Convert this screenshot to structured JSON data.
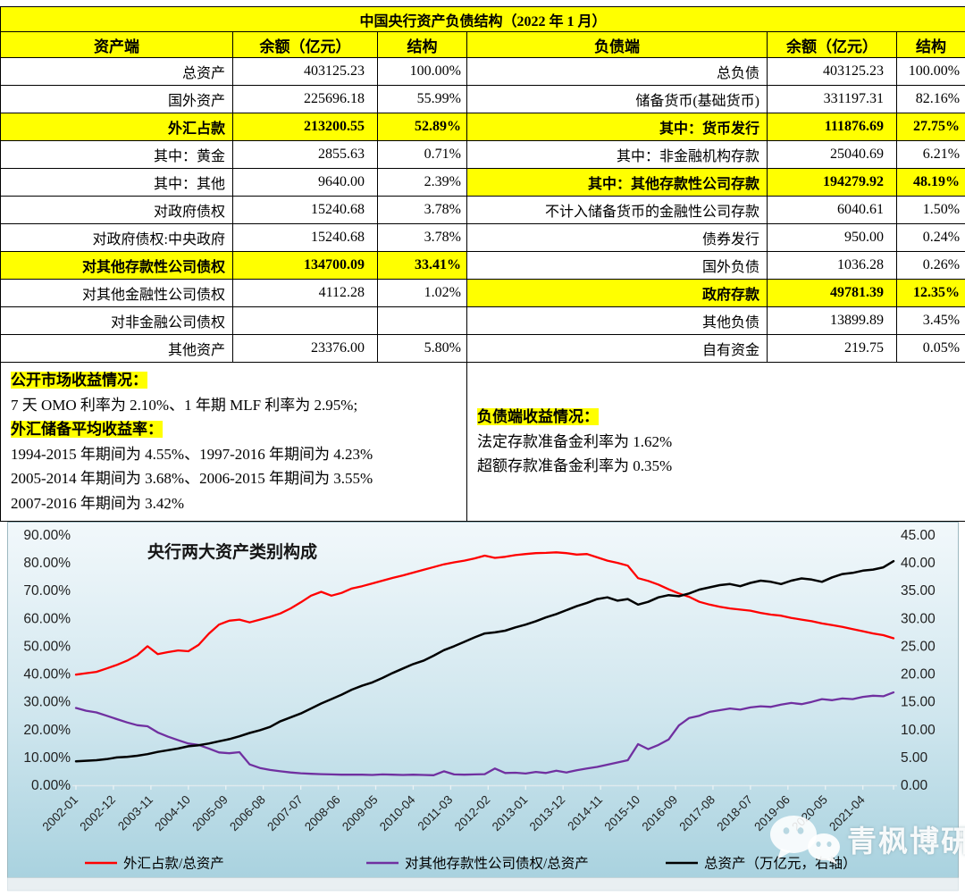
{
  "table": {
    "title": "中国央行资产负债结构（2022 年 1 月）",
    "headers": [
      "资产端",
      "余额（亿元）",
      "结构",
      "负债端",
      "余额（亿元）",
      "结构"
    ],
    "rows": [
      {
        "asset": {
          "label": "总资产",
          "value": "403125.23",
          "pct": "100.00%",
          "highlight": false
        },
        "liability": {
          "label": "总负债",
          "value": "403125.23",
          "pct": "100.00%",
          "highlight": false
        }
      },
      {
        "asset": {
          "label": "国外资产",
          "value": "225696.18",
          "pct": "55.99%",
          "highlight": false
        },
        "liability": {
          "label": "储备货币(基础货币)",
          "value": "331197.31",
          "pct": "82.16%",
          "highlight": false
        }
      },
      {
        "asset": {
          "label": "外汇占款",
          "value": "213200.55",
          "pct": "52.89%",
          "highlight": true
        },
        "liability": {
          "label": "其中：货币发行",
          "value": "111876.69",
          "pct": "27.75%",
          "highlight": true
        }
      },
      {
        "asset": {
          "label": "其中：黄金",
          "value": "2855.63",
          "pct": "0.71%",
          "highlight": false
        },
        "liability": {
          "label": "其中：非金融机构存款",
          "value": "25040.69",
          "pct": "6.21%",
          "highlight": false
        }
      },
      {
        "asset": {
          "label": "其中：其他",
          "value": "9640.00",
          "pct": "2.39%",
          "highlight": false
        },
        "liability": {
          "label": "其中：其他存款性公司存款",
          "value": "194279.92",
          "pct": "48.19%",
          "highlight": true
        }
      },
      {
        "asset": {
          "label": "对政府债权",
          "value": "15240.68",
          "pct": "3.78%",
          "highlight": false
        },
        "liability": {
          "label": "不计入储备货币的金融性公司存款",
          "value": "6040.61",
          "pct": "1.50%",
          "highlight": false
        }
      },
      {
        "asset": {
          "label": "对政府债权:中央政府",
          "value": "15240.68",
          "pct": "3.78%",
          "highlight": false
        },
        "liability": {
          "label": "债券发行",
          "value": "950.00",
          "pct": "0.24%",
          "highlight": false
        }
      },
      {
        "asset": {
          "label": "对其他存款性公司债权",
          "value": "134700.09",
          "pct": "33.41%",
          "highlight": true
        },
        "liability": {
          "label": "国外负债",
          "value": "1036.28",
          "pct": "0.26%",
          "highlight": false
        }
      },
      {
        "asset": {
          "label": "对其他金融性公司债权",
          "value": "4112.28",
          "pct": "1.02%",
          "highlight": false
        },
        "liability": {
          "label": "政府存款",
          "value": "49781.39",
          "pct": "12.35%",
          "highlight": true
        }
      },
      {
        "asset": {
          "label": "对非金融公司债权",
          "value": "",
          "pct": "",
          "highlight": false
        },
        "liability": {
          "label": "其他负债",
          "value": "13899.89",
          "pct": "3.45%",
          "highlight": false
        }
      },
      {
        "asset": {
          "label": "其他资产",
          "value": "23376.00",
          "pct": "5.80%",
          "highlight": false
        },
        "liability": {
          "label": "自有资金",
          "value": "219.75",
          "pct": "0.05%",
          "highlight": false
        }
      }
    ]
  },
  "notes": {
    "left": {
      "heading1": "公开市场收益情况：",
      "line1": "7 天 OMO 利率为 2.10%、1 年期 MLF 利率为 2.95%;",
      "heading2": "外汇储备平均收益率：",
      "line2": "1994-2015 年期间为 4.55%、1997-2016 年期间为 4.23%",
      "line3": "2005-2014 年期间为 3.68%、2006-2015 年期间为 3.55%",
      "line4": "2007-2016 年期间为 3.42%"
    },
    "right": {
      "heading": "负债端收益情况：",
      "line1": "法定存款准备金利率为 1.62%",
      "line2": "超额存款准备金利率为 0.35%"
    }
  },
  "chart_data": {
    "type": "line",
    "title": "央行两大资产类别构成",
    "x_tick_labels": [
      "2002-01",
      "2002-12",
      "2003-11",
      "2004-10",
      "2005-09",
      "2006-08",
      "2007-07",
      "2008-06",
      "2009-05",
      "2010-04",
      "2011-03",
      "2012-02",
      "2013-01",
      "2013-12",
      "2014-11",
      "2015-10",
      "2016-09",
      "2017-08",
      "2018-07",
      "2019-06",
      "2020-05",
      "2021-04"
    ],
    "x_tick_interval_months": 11,
    "x_total_months": 240,
    "sample_interval_months": 3,
    "left_axis": {
      "min": 0,
      "max": 90,
      "step": 10,
      "format": "percent"
    },
    "right_axis": {
      "min": 0,
      "max": 45,
      "step": 5
    },
    "grid": false,
    "legend_position": "bottom",
    "series": [
      {
        "name": "外汇占款/总资产",
        "color": "#ff0000",
        "axis": "left",
        "values": [
          39.8,
          40.3,
          40.8,
          42.0,
          43.3,
          44.8,
          46.8,
          50.0,
          47.2,
          47.9,
          48.5,
          48.2,
          50.5,
          54.5,
          57.8,
          59.2,
          59.6,
          58.6,
          59.6,
          60.6,
          61.8,
          63.6,
          65.8,
          68.2,
          69.6,
          68.2,
          69.2,
          70.8,
          71.6,
          72.6,
          73.6,
          74.6,
          75.5,
          76.5,
          77.5,
          78.5,
          79.5,
          80.2,
          80.8,
          81.6,
          82.6,
          81.8,
          82.2,
          82.8,
          83.2,
          83.5,
          83.6,
          83.8,
          83.5,
          83.0,
          83.2,
          82.0,
          80.8,
          80.0,
          79.0,
          74.5,
          73.5,
          72.2,
          70.5,
          69.0,
          67.8,
          66.0,
          65.0,
          64.2,
          63.6,
          63.2,
          62.8,
          62.0,
          61.4,
          61.0,
          60.2,
          59.6,
          59.0,
          58.2,
          57.6,
          57.0,
          56.2,
          55.4,
          54.6,
          54.0,
          52.89
        ]
      },
      {
        "name": "对其他存款性公司债权/总资产",
        "color": "#7030a0",
        "axis": "left",
        "values": [
          27.8,
          26.8,
          26.2,
          25.0,
          23.8,
          22.6,
          21.6,
          21.2,
          19.0,
          17.5,
          16.2,
          15.0,
          14.5,
          13.2,
          11.8,
          11.5,
          11.9,
          7.5,
          6.2,
          5.5,
          5.0,
          4.6,
          4.3,
          4.1,
          4.0,
          3.9,
          3.8,
          3.8,
          3.8,
          3.7,
          3.9,
          3.8,
          3.7,
          3.8,
          3.7,
          3.6,
          5.0,
          3.9,
          3.8,
          3.9,
          4.0,
          6.0,
          4.4,
          4.5,
          4.2,
          4.8,
          4.4,
          5.2,
          4.6,
          5.4,
          6.0,
          6.6,
          7.4,
          8.2,
          9.0,
          14.8,
          13.0,
          14.5,
          16.5,
          21.5,
          24.2,
          25.0,
          26.4,
          27.0,
          27.6,
          27.2,
          28.0,
          28.4,
          28.2,
          29.0,
          29.6,
          29.2,
          30.0,
          31.0,
          30.6,
          31.2,
          31.0,
          31.8,
          32.2,
          32.0,
          33.41
        ]
      },
      {
        "name": "总资产（万亿元，右轴）",
        "color": "#000000",
        "axis": "right",
        "values": [
          4.3,
          4.4,
          4.5,
          4.7,
          5.0,
          5.1,
          5.3,
          5.6,
          6.0,
          6.3,
          6.6,
          7.0,
          7.2,
          7.5,
          7.9,
          8.3,
          8.8,
          9.4,
          9.9,
          10.5,
          11.5,
          12.2,
          12.9,
          13.8,
          14.7,
          15.5,
          16.3,
          17.2,
          17.9,
          18.5,
          19.3,
          20.2,
          21.0,
          21.8,
          22.4,
          23.3,
          24.3,
          25.0,
          25.8,
          26.6,
          27.3,
          27.5,
          27.8,
          28.4,
          28.9,
          29.5,
          30.2,
          30.8,
          31.5,
          32.2,
          32.8,
          33.5,
          33.8,
          33.2,
          33.5,
          32.5,
          33.0,
          33.8,
          34.2,
          34.0,
          34.5,
          35.2,
          35.6,
          36.0,
          36.2,
          35.8,
          36.4,
          36.8,
          36.6,
          36.2,
          36.8,
          37.2,
          37.0,
          36.6,
          37.4,
          38.0,
          38.2,
          38.6,
          38.8,
          39.2,
          40.31
        ]
      }
    ]
  },
  "colors": {
    "highlight_bg": "#ffff00",
    "highlight_text": "#ff0000",
    "chart_bg_top": "#f2f8fb",
    "chart_bg_bottom": "#a9d2df"
  },
  "watermark": {
    "label": "青枫博研社",
    "icon": "wechat-icon"
  }
}
